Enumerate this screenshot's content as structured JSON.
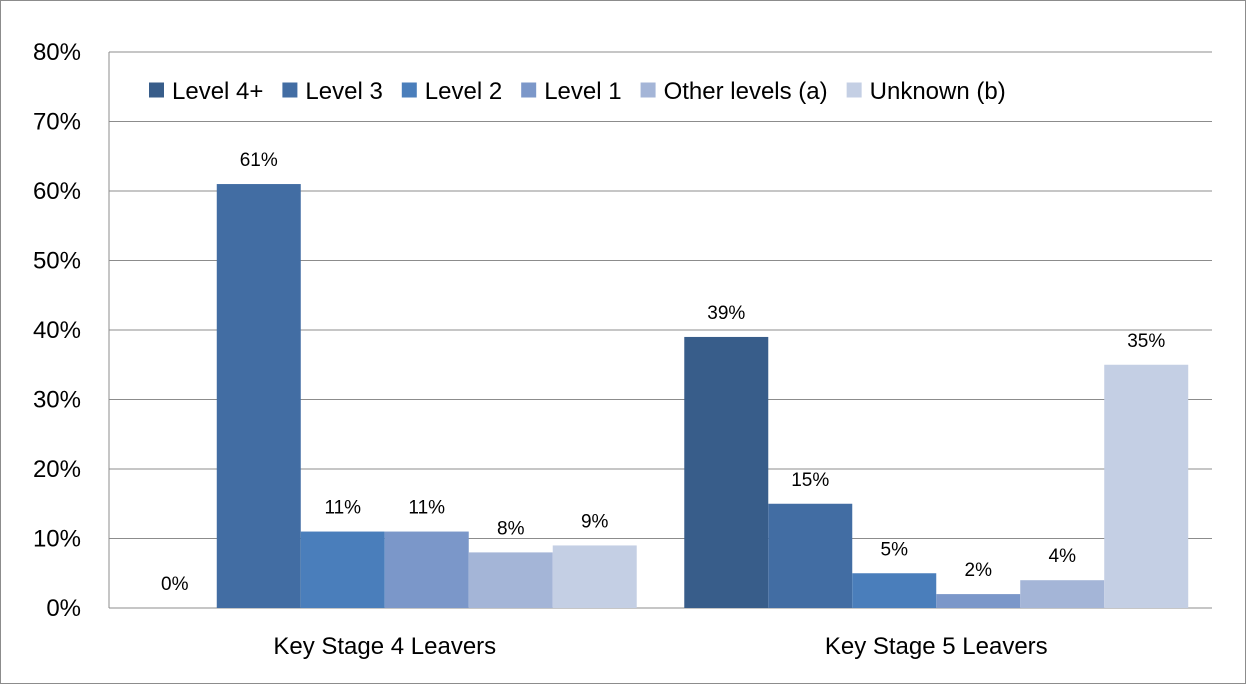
{
  "chart_data": {
    "type": "bar",
    "categories": [
      "Key Stage 4 Leavers",
      "Key Stage 5 Leavers"
    ],
    "series": [
      {
        "name": "Level 4+",
        "color": "#385d8a",
        "values": [
          0,
          39
        ],
        "labels": [
          "0%",
          "39%"
        ]
      },
      {
        "name": "Level 3",
        "color": "#426da3",
        "values": [
          61,
          15
        ],
        "labels": [
          "61%",
          "15%"
        ]
      },
      {
        "name": "Level 2",
        "color": "#4a7ebb",
        "values": [
          11,
          5
        ],
        "labels": [
          "11%",
          "5%"
        ]
      },
      {
        "name": "Level 1",
        "color": "#7b97c9",
        "values": [
          11,
          2
        ],
        "labels": [
          "11%",
          "2%"
        ]
      },
      {
        "name": "Other levels (a)",
        "color": "#a4b5d7",
        "values": [
          8,
          4
        ],
        "labels": [
          "8%",
          "4%"
        ]
      },
      {
        "name": "Unknown (b)",
        "color": "#c4cfe4",
        "values": [
          9,
          35
        ],
        "labels": [
          "9%",
          "35%"
        ]
      }
    ],
    "y_ticks": [
      "0%",
      "10%",
      "20%",
      "30%",
      "40%",
      "50%",
      "60%",
      "70%",
      "80%"
    ],
    "ylim": [
      0,
      80
    ],
    "grid": true,
    "legend_position": "top"
  }
}
